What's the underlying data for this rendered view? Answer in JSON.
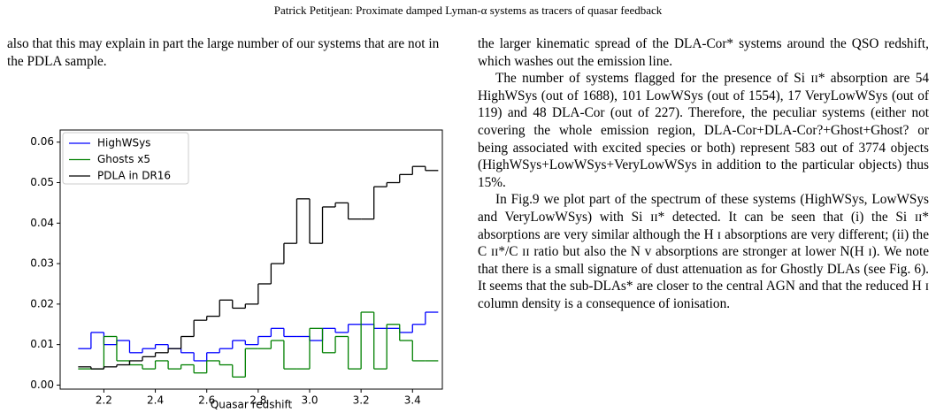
{
  "header": "Patrick Petitjean: Proximate damped Lyman-α systems as tracers of quasar feedback",
  "left_text": "also that this may explain in part the large number of our systems that are not in the PDLA sample.",
  "right_text": [
    "the larger kinematic spread of the DLA-Cor* systems around the QSO redshift, which washes out the emission line.",
    "The number of systems flagged for the presence of Si ɪɪ* absorption are 54 HighWSys (out of 1688), 101 LowWSys (out of 1554), 17 VeryLowWSys (out of 119) and 48 DLA-Cor (out of 227). Therefore, the peculiar systems (either not covering the whole emission region, DLA-Cor+DLA-Cor?+Ghost+Ghost? or being associated with excited species or both) represent 583 out of 3774 objects (HighWSys+LowWSys+VeryLowWSys in addition to the particular objects) thus 15%.",
    "In Fig.9 we plot part of the spectrum of these systems (HighWSys, LowWSys and VeryLowWSys) with Si ɪɪ* detected. It can be seen that (i) the Si ɪɪ* absorptions are very similar although the H ɪ absorptions are very different; (ii) the C ɪɪ*/C ɪɪ ratio but also the N v absorptions are stronger at lower N(H ɪ). We note that there is a small signature of dust attenuation as for Ghostly DLAs (see Fig. 6). It seems that the sub-DLAs* are closer to the central AGN and that the reduced H ɪ column density is a consequence of ionisation."
  ],
  "chart_data": {
    "type": "histogram",
    "x_label": "Quasar redshift",
    "bins": [
      2.1,
      2.15,
      2.2,
      2.25,
      2.3,
      2.35,
      2.4,
      2.45,
      2.5,
      2.55,
      2.6,
      2.65,
      2.7,
      2.75,
      2.8,
      2.85,
      2.9,
      2.95,
      3.0,
      3.05,
      3.1,
      3.15,
      3.2,
      3.25,
      3.3,
      3.35,
      3.4,
      3.45,
      3.5
    ],
    "series": [
      {
        "name": "HighWSys",
        "color": "#0000ff",
        "values": [
          0.009,
          0.013,
          0.01,
          0.011,
          0.008,
          0.009,
          0.01,
          0.009,
          0.008,
          0.006,
          0.008,
          0.009,
          0.011,
          0.01,
          0.012,
          0.014,
          0.012,
          0.012,
          0.011,
          0.014,
          0.013,
          0.015,
          0.015,
          0.014,
          0.014,
          0.013,
          0.015,
          0.018
        ]
      },
      {
        "name": "Ghosts x5",
        "color": "#008000",
        "values": [
          0.004,
          0.004,
          0.012,
          0.006,
          0.005,
          0.004,
          0.006,
          0.004,
          0.005,
          0.003,
          0.006,
          0.005,
          0.002,
          0.009,
          0.009,
          0.011,
          0.004,
          0.004,
          0.014,
          0.008,
          0.012,
          0.004,
          0.018,
          0.004,
          0.015,
          0.011,
          0.006,
          0.006
        ]
      },
      {
        "name": "PDLA in DR16",
        "color": "#000000",
        "values": [
          0.0045,
          0.004,
          0.0045,
          0.005,
          0.006,
          0.007,
          0.008,
          0.009,
          0.012,
          0.016,
          0.017,
          0.021,
          0.019,
          0.02,
          0.025,
          0.03,
          0.035,
          0.046,
          0.035,
          0.044,
          0.045,
          0.041,
          0.041,
          0.049,
          0.05,
          0.052,
          0.054,
          0.053
        ]
      }
    ],
    "xlim": [
      2.03,
      3.516
    ],
    "ylim": [
      -0.001,
      0.063
    ],
    "xticks": [
      2.2,
      2.4,
      2.6,
      2.8,
      {
        "value": 3,
        "label": "3.0"
      },
      3.2,
      3.4
    ],
    "yticks": [
      {
        "value": 0,
        "label": "0.00"
      },
      0.01,
      0.02,
      0.03,
      0.04,
      0.05,
      0.06
    ],
    "legend": "upper left"
  }
}
